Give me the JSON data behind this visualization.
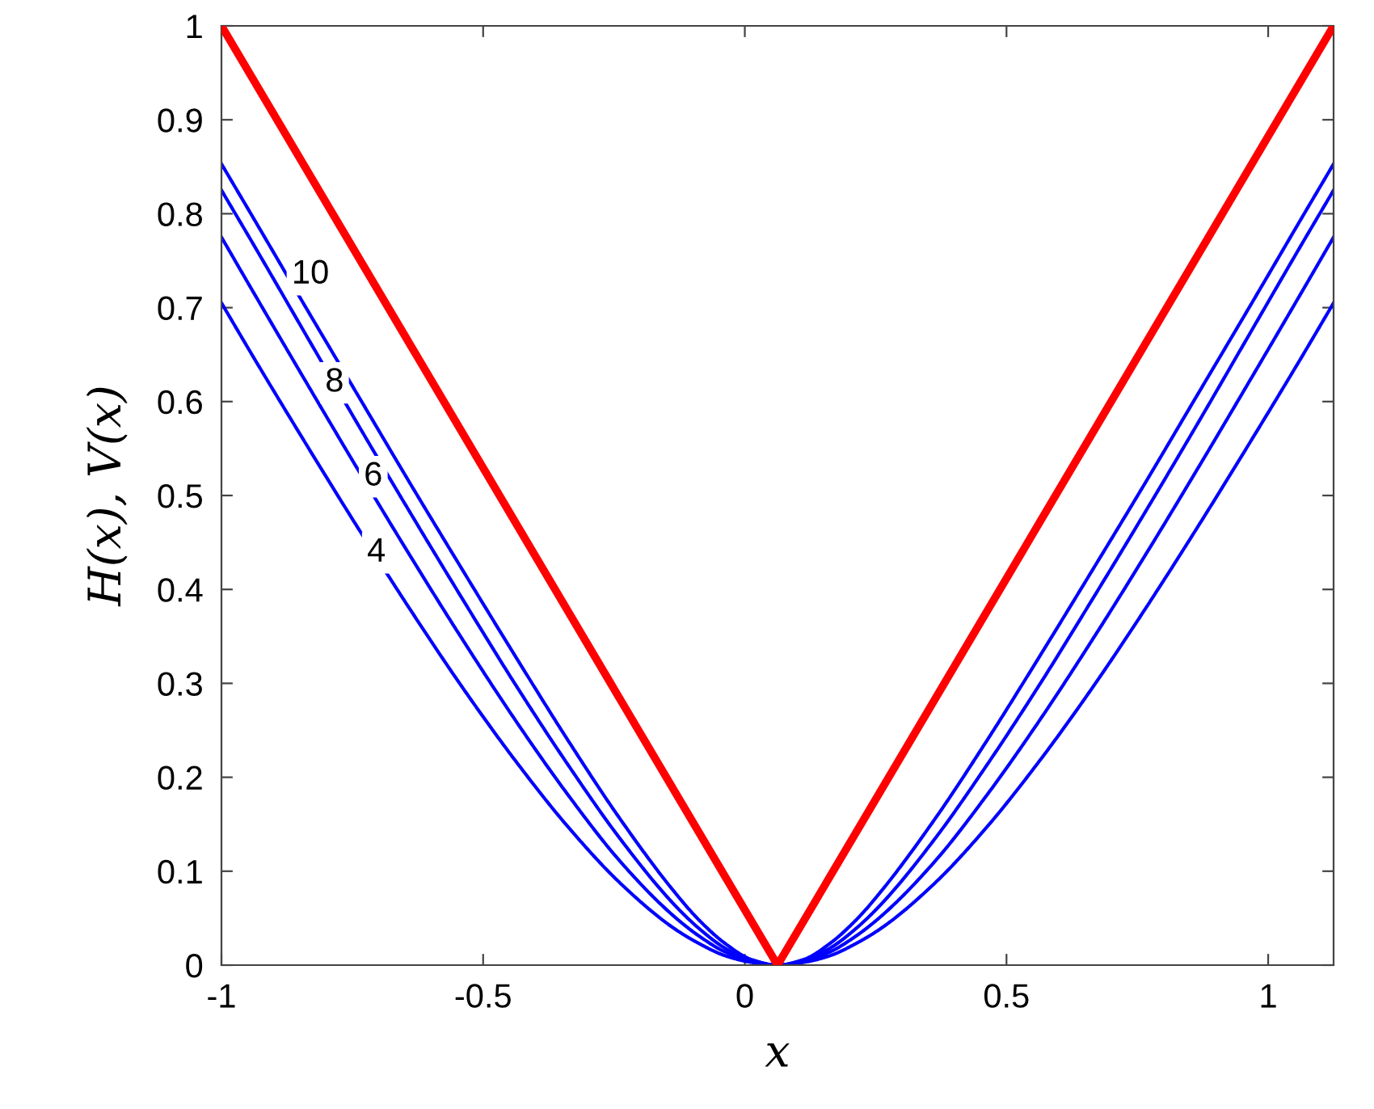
{
  "chart_data": {
    "type": "line",
    "xlabel": "x",
    "ylabel": "H(x), V(x)",
    "x": [
      -1,
      -0.9375,
      -0.8375,
      -0.7375,
      -0.6375,
      -0.5375,
      -0.4375,
      -0.3375,
      -0.2375,
      -0.1375,
      -0.0875,
      -0.0375,
      0.0125,
      0.0625,
      0.1125,
      0.1625,
      0.2125,
      0.2625,
      0.3625,
      0.4625,
      0.5625,
      0.6625,
      0.7625,
      0.8625,
      0.9625,
      1.0625,
      1.125
    ],
    "series": [
      {
        "color": "#0000ff",
        "values": [
          0.853,
          0.794,
          0.699,
          0.605,
          0.511,
          0.419,
          0.328,
          0.239,
          0.155,
          0.08,
          0.048,
          0.023,
          0.006,
          0,
          0.006,
          0.023,
          0.048,
          0.08,
          0.155,
          0.239,
          0.328,
          0.419,
          0.511,
          0.605,
          0.699,
          0.794,
          0.853
        ]
      },
      {
        "color": "#0000ff",
        "values": [
          0.825,
          0.766,
          0.67,
          0.574,
          0.48,
          0.388,
          0.298,
          0.213,
          0.134,
          0.066,
          0.039,
          0.018,
          0.005,
          0,
          0.005,
          0.018,
          0.039,
          0.066,
          0.134,
          0.213,
          0.298,
          0.388,
          0.48,
          0.574,
          0.67,
          0.766,
          0.825
        ]
      },
      {
        "color": "#0000ff",
        "values": [
          0.775,
          0.715,
          0.62,
          0.526,
          0.434,
          0.345,
          0.26,
          0.181,
          0.11,
          0.053,
          0.031,
          0.014,
          0.004,
          0,
          0.004,
          0.014,
          0.031,
          0.053,
          0.11,
          0.181,
          0.26,
          0.345,
          0.434,
          0.526,
          0.62,
          0.715,
          0.775
        ]
      },
      {
        "color": "#0000ff",
        "values": [
          0.705,
          0.646,
          0.554,
          0.464,
          0.377,
          0.294,
          0.217,
          0.147,
          0.087,
          0.04,
          0.023,
          0.01,
          0.003,
          0,
          0.003,
          0.01,
          0.023,
          0.04,
          0.087,
          0.147,
          0.217,
          0.294,
          0.377,
          0.464,
          0.554,
          0.646,
          0.705
        ]
      },
      {
        "color": "#ff0000",
        "x": [
          -1,
          0.0625,
          1.125
        ],
        "values": [
          1,
          0,
          1
        ]
      }
    ],
    "annotations": [
      {
        "text": "10",
        "x": -0.83,
        "y": 0.735
      },
      {
        "text": "8",
        "x": -0.784,
        "y": 0.62
      },
      {
        "text": "6",
        "x": -0.71,
        "y": 0.52
      },
      {
        "text": "4",
        "x": -0.704,
        "y": 0.439
      }
    ],
    "xlim": [
      -1,
      1.125
    ],
    "xticks": [
      -1,
      -0.5,
      0,
      0.5,
      1
    ],
    "ylim": [
      0,
      1
    ],
    "yticks": [
      0,
      0.1,
      0.2,
      0.3,
      0.4,
      0.5,
      0.6,
      0.7,
      0.8,
      0.9,
      1
    ],
    "grid": false,
    "legend": false
  }
}
